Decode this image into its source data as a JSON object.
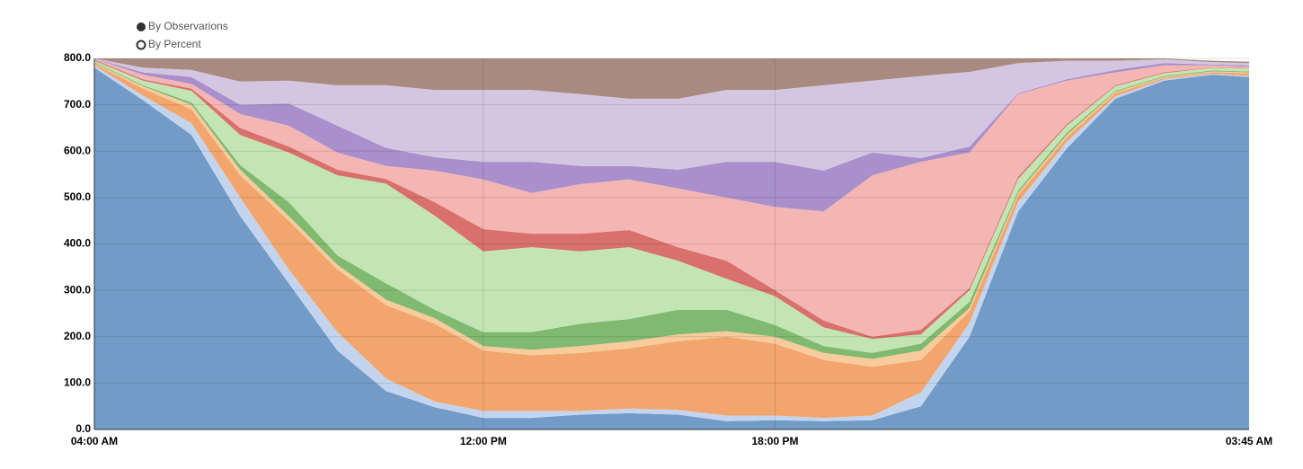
{
  "view_toggle": {
    "options": [
      "By Observarions",
      "By Percent"
    ],
    "selected": 0
  },
  "chart_data": {
    "type": "stacked_area",
    "x": [
      0,
      1,
      2,
      3,
      4,
      5,
      6,
      7,
      8,
      9,
      10,
      11,
      12,
      13,
      14,
      15,
      16,
      17,
      18,
      19,
      20,
      21,
      22,
      23,
      23.75
    ],
    "xlim": [
      0,
      23.75
    ],
    "xticks": [
      {
        "value": 0,
        "label": "04:00 AM"
      },
      {
        "value": 8,
        "label": "12:00 PM"
      },
      {
        "value": 14,
        "label": "18:00 PM"
      },
      {
        "value": 23.75,
        "label": "03:45 AM"
      }
    ],
    "ylim": [
      0,
      800
    ],
    "yticks": [
      {
        "value": 0,
        "label": "0.0"
      },
      {
        "value": 100,
        "label": "100.0"
      },
      {
        "value": 200,
        "label": "200.0"
      },
      {
        "value": 300,
        "label": "300.0"
      },
      {
        "value": 400,
        "label": "400.0"
      },
      {
        "value": 500,
        "label": "500.0"
      },
      {
        "value": 600,
        "label": "600.0"
      },
      {
        "value": 700,
        "label": "700.0"
      },
      {
        "value": 800,
        "label": "800.0"
      }
    ],
    "grid": true,
    "series": [
      {
        "color": "#729bc7",
        "values": [
          780,
          710,
          635,
          460,
          315,
          170,
          83,
          48,
          25,
          25,
          32,
          35,
          32,
          18,
          20,
          18,
          20,
          50,
          200,
          470,
          606,
          713,
          752,
          765,
          760
        ]
      },
      {
        "color": "#c3d5ee",
        "values": [
          5,
          10,
          25,
          40,
          30,
          40,
          27,
          12,
          15,
          15,
          8,
          10,
          10,
          12,
          10,
          7,
          10,
          30,
          30,
          20,
          14,
          5,
          3,
          2,
          2
        ]
      },
      {
        "color": "#f2a56c",
        "values": [
          3,
          15,
          30,
          48,
          105,
          135,
          158,
          168,
          130,
          120,
          125,
          130,
          148,
          170,
          155,
          125,
          105,
          70,
          25,
          15,
          10,
          7,
          3,
          3,
          6
        ]
      },
      {
        "color": "#f7cb9c",
        "values": [
          2,
          5,
          10,
          12,
          10,
          10,
          12,
          12,
          10,
          12,
          15,
          15,
          15,
          12,
          15,
          15,
          17,
          20,
          7,
          5,
          5,
          3,
          2,
          2,
          2
        ]
      },
      {
        "color": "#80b970",
        "values": [
          2,
          2,
          5,
          10,
          30,
          20,
          35,
          18,
          30,
          38,
          48,
          48,
          53,
          46,
          25,
          15,
          13,
          15,
          13,
          5,
          5,
          2,
          2,
          2,
          2
        ]
      },
      {
        "color": "#c3e5b3",
        "values": [
          3,
          10,
          25,
          65,
          107,
          173,
          215,
          203,
          174,
          183,
          156,
          155,
          106,
          67,
          62,
          40,
          30,
          20,
          25,
          25,
          15,
          10,
          6,
          6,
          6
        ]
      },
      {
        "color": "#d8706b",
        "values": [
          2,
          3,
          5,
          15,
          13,
          12,
          10,
          29,
          48,
          29,
          38,
          37,
          29,
          39,
          13,
          15,
          5,
          10,
          5,
          5,
          3,
          2,
          2,
          1,
          1
        ]
      },
      {
        "color": "#f4b6b3",
        "values": [
          2,
          10,
          10,
          30,
          45,
          37,
          28,
          68,
          107,
          88,
          107,
          109,
          127,
          136,
          180,
          235,
          348,
          362,
          292,
          178,
          94,
          28,
          15,
          4,
          3
        ]
      },
      {
        "color": "#a98fcb",
        "values": [
          1,
          5,
          15,
          20,
          48,
          58,
          39,
          29,
          38,
          67,
          39,
          29,
          40,
          77,
          97,
          88,
          49,
          8,
          13,
          2,
          3,
          5,
          5,
          2,
          3
        ]
      },
      {
        "color": "#d4c6e0",
        "values": [
          0,
          10,
          15,
          50,
          49,
          87,
          135,
          145,
          155,
          155,
          155,
          145,
          153,
          155,
          155,
          184,
          155,
          177,
          161,
          65,
          40,
          20,
          8,
          5,
          5
        ]
      },
      {
        "color": "#a98a7e",
        "values": [
          0,
          20,
          25,
          50,
          48,
          58,
          58,
          68,
          68,
          68,
          77,
          87,
          87,
          68,
          68,
          58,
          48,
          38,
          29,
          10,
          5,
          5,
          2,
          3,
          3
        ]
      }
    ]
  }
}
